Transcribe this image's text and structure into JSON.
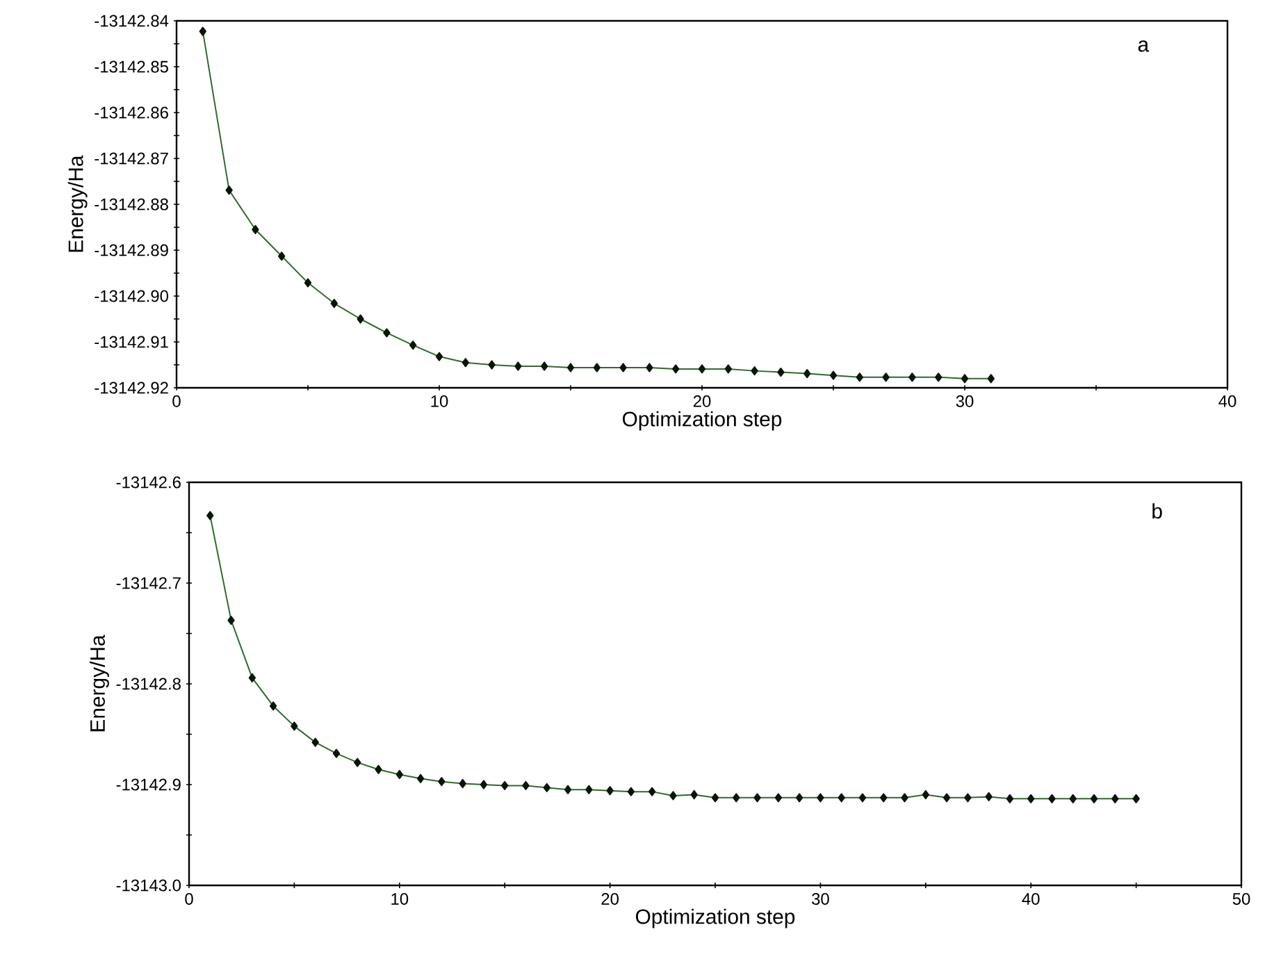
{
  "chart_data": [
    {
      "type": "line",
      "xlabel": "Optimization step",
      "ylabel": "Energy/Ha",
      "annotations": [
        "a"
      ],
      "marker": "diamond",
      "line_style": "solid",
      "xlim": [
        0,
        40
      ],
      "xticks": [
        0,
        {
          "value": 5,
          "label": null
        },
        10,
        {
          "value": 15,
          "label": null
        },
        20,
        {
          "value": 25,
          "label": null
        },
        30,
        {
          "value": 35,
          "label": null
        },
        40
      ],
      "ylim": [
        -13142.92,
        -13142.84
      ],
      "yticks": [
        -13142.84,
        {
          "value": -13142.845,
          "label": null
        },
        -13142.85,
        {
          "value": -13142.855,
          "label": null
        },
        -13142.86,
        {
          "value": -13142.865,
          "label": null
        },
        -13142.87,
        {
          "value": -13142.875,
          "label": null
        },
        -13142.88,
        {
          "value": -13142.885,
          "label": null
        },
        -13142.89,
        {
          "value": -13142.895,
          "label": null
        },
        {
          "value": -13142.9,
          "label": "-13142.90"
        },
        {
          "value": -13142.905,
          "label": null
        },
        -13142.91,
        {
          "value": -13142.915,
          "label": null
        },
        -13142.92
      ],
      "x": [
        1,
        2,
        3,
        4,
        5,
        6,
        7,
        8,
        9,
        10,
        11,
        12,
        13,
        14,
        15,
        16,
        17,
        18,
        19,
        20,
        21,
        22,
        23,
        24,
        25,
        26,
        27,
        28,
        29,
        30,
        31
      ],
      "series": [
        {
          "color": "#2e6b2a",
          "values": [
            -13142.8423,
            -13142.8769,
            -13142.8855,
            -13142.8913,
            -13142.8971,
            -13142.9016,
            -13142.905,
            -13142.908,
            -13142.9107,
            -13142.9132,
            -13142.9145,
            -13142.915,
            -13142.9153,
            -13142.9153,
            -13142.9156,
            -13142.9156,
            -13142.9156,
            -13142.9156,
            -13142.9159,
            -13142.9159,
            -13142.9159,
            -13142.9163,
            -13142.9166,
            -13142.9169,
            -13142.9173,
            -13142.9177,
            -13142.9177,
            -13142.9177,
            -13142.9177,
            -13142.918,
            -13142.918
          ]
        }
      ]
    },
    {
      "type": "line",
      "xlabel": "Optimization step",
      "ylabel": "Energy/Ha",
      "annotations": [
        "b"
      ],
      "marker": "diamond",
      "line_style": "solid",
      "xlim": [
        0,
        50
      ],
      "xticks": [
        0,
        {
          "value": 5,
          "label": null
        },
        10,
        {
          "value": 15,
          "label": null
        },
        20,
        {
          "value": 25,
          "label": null
        },
        30,
        {
          "value": 35,
          "label": null
        },
        40,
        {
          "value": 45,
          "label": null
        },
        50
      ],
      "ylim": [
        -13143.0,
        -13142.6
      ],
      "yticks": [
        -13142.6,
        {
          "value": -13142.65,
          "label": null
        },
        -13142.7,
        {
          "value": -13142.75,
          "label": null
        },
        -13142.8,
        {
          "value": -13142.85,
          "label": null
        },
        -13142.9,
        {
          "value": -13142.95,
          "label": null
        },
        {
          "value": -13143.0,
          "label": "-13143.0"
        }
      ],
      "x": [
        1,
        2,
        3,
        4,
        5,
        6,
        7,
        8,
        9,
        10,
        11,
        12,
        13,
        14,
        15,
        16,
        17,
        18,
        19,
        20,
        21,
        22,
        23,
        24,
        25,
        26,
        27,
        28,
        29,
        30,
        31,
        32,
        33,
        34,
        35,
        36,
        37,
        38,
        39,
        40,
        41,
        42,
        43,
        44,
        45
      ],
      "series": [
        {
          "color": "#2e6b2a",
          "values": [
            -13142.633,
            -13142.737,
            -13142.794,
            -13142.822,
            -13142.842,
            -13142.858,
            -13142.869,
            -13142.878,
            -13142.885,
            -13142.89,
            -13142.894,
            -13142.897,
            -13142.899,
            -13142.9,
            -13142.901,
            -13142.901,
            -13142.903,
            -13142.905,
            -13142.905,
            -13142.906,
            -13142.907,
            -13142.907,
            -13142.911,
            -13142.91,
            -13142.913,
            -13142.913,
            -13142.913,
            -13142.913,
            -13142.913,
            -13142.913,
            -13142.913,
            -13142.913,
            -13142.913,
            -13142.913,
            -13142.91,
            -13142.913,
            -13142.913,
            -13142.912,
            -13142.914,
            -13142.914,
            -13142.914,
            -13142.914,
            -13142.914,
            -13142.914,
            -13142.914
          ]
        }
      ]
    }
  ]
}
